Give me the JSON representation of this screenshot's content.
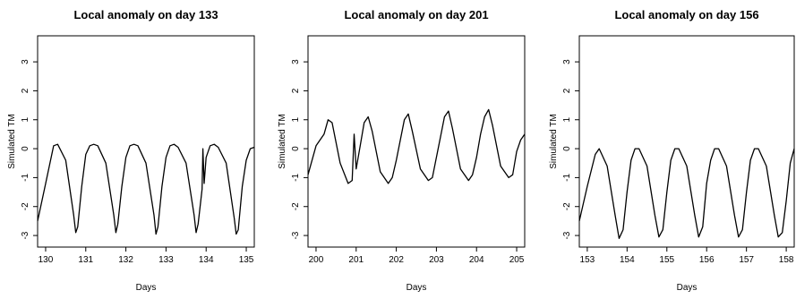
{
  "chart_data": [
    {
      "type": "line",
      "title": "Local anomaly on day 133",
      "xlabel": "Days",
      "ylabel": "Simulated TM",
      "xlim": [
        129.8,
        135.2
      ],
      "ylim": [
        -3.4,
        3.9
      ],
      "xticks": [
        130,
        131,
        132,
        133,
        134,
        135
      ],
      "yticks": [
        -3,
        -2,
        -1,
        0,
        1,
        2,
        3
      ],
      "series": [
        {
          "x": [
            129.8,
            130.0,
            130.2,
            130.3,
            130.5,
            130.7,
            130.75,
            130.8,
            130.9,
            131.0,
            131.1,
            131.2,
            131.3,
            131.5,
            131.7,
            131.75,
            131.8,
            131.9,
            132.0,
            132.1,
            132.2,
            132.3,
            132.5,
            132.7,
            132.75,
            132.8,
            132.9,
            133.0,
            133.1,
            133.2,
            133.3,
            133.5,
            133.7,
            133.75,
            133.8,
            133.9,
            133.92,
            133.95,
            134.0,
            134.1,
            134.2,
            134.3,
            134.5,
            134.7,
            134.75,
            134.8,
            134.9,
            135.0,
            135.1,
            135.2
          ],
          "y": [
            -2.5,
            -1.2,
            0.1,
            0.15,
            -0.4,
            -2.3,
            -2.9,
            -2.7,
            -1.3,
            -0.2,
            0.1,
            0.15,
            0.1,
            -0.5,
            -2.3,
            -2.9,
            -2.6,
            -1.3,
            -0.3,
            0.1,
            0.15,
            0.1,
            -0.5,
            -2.3,
            -2.95,
            -2.7,
            -1.3,
            -0.3,
            0.1,
            0.15,
            0.05,
            -0.5,
            -2.3,
            -2.9,
            -2.6,
            -1.4,
            0.0,
            -1.2,
            -0.3,
            0.1,
            0.15,
            0.05,
            -0.5,
            -2.4,
            -2.95,
            -2.8,
            -1.3,
            -0.4,
            0.0,
            0.05
          ]
        }
      ]
    },
    {
      "type": "line",
      "title": "Local anomaly on day 201",
      "xlabel": "Days",
      "ylabel": "Simulated TM",
      "xlim": [
        199.8,
        205.2
      ],
      "ylim": [
        -3.4,
        3.9
      ],
      "xticks": [
        200,
        201,
        202,
        203,
        204,
        205
      ],
      "yticks": [
        -3,
        -2,
        -1,
        0,
        1,
        2,
        3
      ],
      "series": [
        {
          "x": [
            199.8,
            200.0,
            200.2,
            200.3,
            200.4,
            200.6,
            200.8,
            200.9,
            200.95,
            201.0,
            201.1,
            201.2,
            201.3,
            201.4,
            201.6,
            201.8,
            201.9,
            202.0,
            202.1,
            202.2,
            202.3,
            202.4,
            202.6,
            202.8,
            202.9,
            203.0,
            203.1,
            203.2,
            203.3,
            203.4,
            203.6,
            203.8,
            203.9,
            204.0,
            204.1,
            204.2,
            204.3,
            204.4,
            204.6,
            204.8,
            204.9,
            205.0,
            205.1,
            205.2
          ],
          "y": [
            -0.9,
            0.1,
            0.5,
            1.0,
            0.9,
            -0.5,
            -1.2,
            -1.1,
            0.5,
            -0.7,
            0.1,
            0.9,
            1.1,
            0.6,
            -0.8,
            -1.2,
            -1.0,
            -0.4,
            0.3,
            1.0,
            1.2,
            0.6,
            -0.7,
            -1.1,
            -1.0,
            -0.3,
            0.4,
            1.1,
            1.3,
            0.7,
            -0.7,
            -1.1,
            -0.9,
            -0.3,
            0.5,
            1.1,
            1.35,
            0.8,
            -0.6,
            -1.0,
            -0.9,
            -0.1,
            0.3,
            0.5
          ]
        }
      ]
    },
    {
      "type": "line",
      "title": "Local anomaly on day 156",
      "xlabel": "Days",
      "ylabel": "Simulated TM",
      "xlim": [
        152.8,
        158.2
      ],
      "ylim": [
        -3.4,
        3.9
      ],
      "xticks": [
        153,
        154,
        155,
        156,
        157,
        158
      ],
      "yticks": [
        -3,
        -2,
        -1,
        0,
        1,
        2,
        3
      ],
      "series": [
        {
          "x": [
            152.8,
            153.0,
            153.2,
            153.3,
            153.5,
            153.7,
            153.8,
            153.9,
            154.0,
            154.1,
            154.2,
            154.3,
            154.5,
            154.7,
            154.8,
            154.9,
            155.0,
            155.1,
            155.2,
            155.3,
            155.5,
            155.7,
            155.8,
            155.9,
            156.0,
            156.1,
            156.2,
            156.3,
            156.5,
            156.7,
            156.8,
            156.9,
            157.0,
            157.1,
            157.2,
            157.3,
            157.5,
            157.7,
            157.8,
            157.9,
            158.0,
            158.1,
            158.2
          ],
          "y": [
            -2.5,
            -1.3,
            -0.2,
            0.0,
            -0.6,
            -2.3,
            -3.1,
            -2.8,
            -1.5,
            -0.4,
            0.0,
            0.0,
            -0.6,
            -2.3,
            -3.05,
            -2.8,
            -1.5,
            -0.4,
            0.0,
            0.0,
            -0.6,
            -2.3,
            -3.05,
            -2.7,
            -1.2,
            -0.4,
            0.0,
            0.0,
            -0.6,
            -2.3,
            -3.05,
            -2.8,
            -1.5,
            -0.4,
            0.0,
            0.0,
            -0.6,
            -2.3,
            -3.05,
            -2.9,
            -1.8,
            -0.5,
            0.0
          ]
        }
      ]
    }
  ]
}
